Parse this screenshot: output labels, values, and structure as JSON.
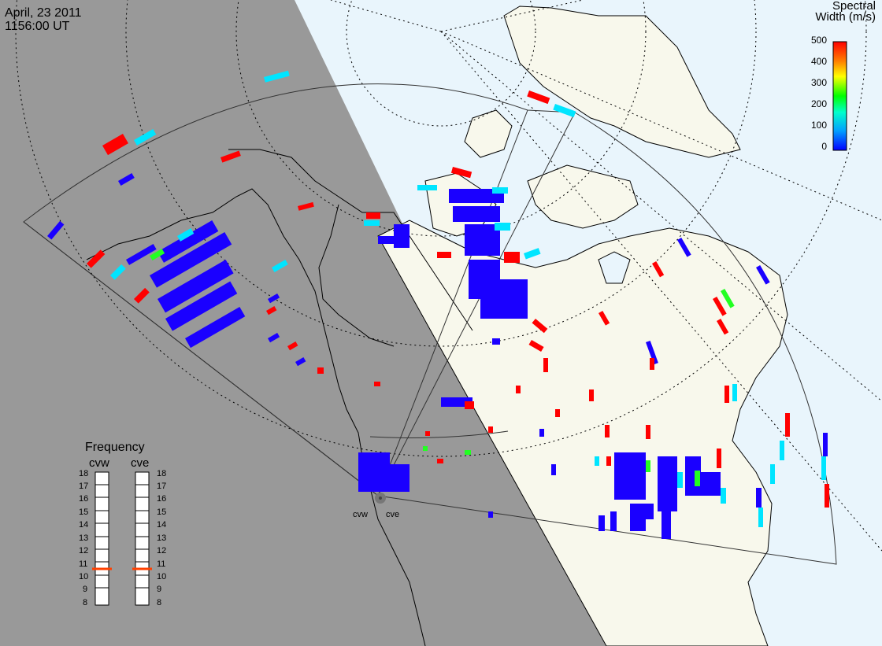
{
  "header": {
    "date": "April, 23 2011",
    "time": "1156:00 UT"
  },
  "colorbar": {
    "title_line1": "Spectral",
    "title_line2": "Width (m/s)",
    "ticks": [
      "500",
      "400",
      "300",
      "200",
      "100",
      "0"
    ],
    "colors": [
      "#ff0000",
      "#ff8000",
      "#ffff00",
      "#00ff00",
      "#00ffcc",
      "#00a0ff",
      "#0000ff"
    ]
  },
  "frequency": {
    "title": "Frequency",
    "radars": [
      {
        "name": "cvw",
        "value": 11
      },
      {
        "name": "cve",
        "value": 11
      }
    ],
    "ticks": [
      "18",
      "17",
      "16",
      "15",
      "14",
      "13",
      "12",
      "11",
      "10",
      "9",
      "8"
    ]
  },
  "radar_sites": [
    {
      "name": "cvw"
    },
    {
      "name": "cve"
    }
  ],
  "colors": {
    "night": "#999999",
    "ocean": "#e9f5fc",
    "land": "#f8f8ec",
    "scatter_blue": "#1a00ff",
    "scatter_red": "#ff0000"
  }
}
